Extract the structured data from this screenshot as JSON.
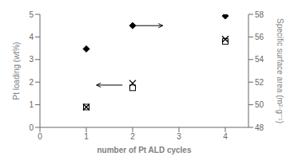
{
  "chart_data": {
    "type": "scatter",
    "x": [
      1,
      2,
      4
    ],
    "series": [
      {
        "values": [
          3.47,
          4.5,
          4.93
        ],
        "color": "#000000",
        "marker": "diamond"
      },
      {
        "values": [
          0.9,
          1.75,
          3.8
        ],
        "color": "#000000",
        "marker": "square-open"
      },
      {
        "values": [
          0.9,
          1.95,
          3.9
        ],
        "color": "#000000",
        "marker": "x"
      }
    ],
    "xlim": [
      0,
      4.5
    ],
    "ylim": [
      0,
      5
    ],
    "xticks": [
      0,
      1,
      2,
      3,
      4
    ],
    "yticks": [
      0,
      1,
      2,
      3,
      4,
      5
    ],
    "y2lim": [
      48,
      58
    ],
    "y2ticks": [
      48,
      50,
      52,
      54,
      56,
      58
    ],
    "xlabel": "number of Pt ALD cycles",
    "ylabel": "Pt loading (wt%)",
    "y2label": "Specific surface area (m²·g⁻¹)",
    "grid": false,
    "annotations": [
      {
        "type": "arrow",
        "from": [
          2.05,
          4.5
        ],
        "to": [
          2.65,
          4.5
        ]
      },
      {
        "type": "arrow",
        "from": [
          1.78,
          1.87
        ],
        "to": [
          1.22,
          1.87
        ]
      }
    ]
  }
}
